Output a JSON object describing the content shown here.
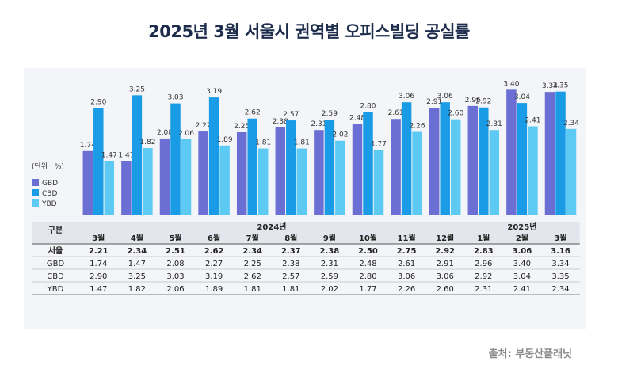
{
  "title": "2025년 3월 서울시 권역별 오피스빌딩 공실률",
  "source": "출처: 부동산플래닛",
  "chart_data": {
    "type": "bar",
    "unit_label": "(단위 : %)",
    "year_groups": [
      {
        "label": "2024년",
        "from": 0,
        "to": 9
      },
      {
        "label": "2025년",
        "from": 10,
        "to": 12
      }
    ],
    "categories": [
      "3월",
      "4월",
      "5월",
      "6월",
      "7월",
      "8월",
      "9월",
      "10월",
      "11월",
      "12월",
      "1월",
      "2월",
      "3월"
    ],
    "series": [
      {
        "name": "GBD",
        "color": "#6b6fd4",
        "values": [
          1.74,
          1.47,
          2.08,
          2.27,
          2.25,
          2.38,
          2.31,
          2.48,
          2.61,
          2.91,
          2.96,
          3.4,
          3.34
        ]
      },
      {
        "name": "CBD",
        "color": "#1a9be6",
        "values": [
          2.9,
          3.25,
          3.03,
          3.19,
          2.62,
          2.57,
          2.59,
          2.8,
          3.06,
          3.06,
          2.92,
          3.04,
          3.35
        ]
      },
      {
        "name": "YBD",
        "color": "#5ccaf2",
        "values": [
          1.47,
          1.82,
          2.06,
          1.89,
          1.81,
          1.81,
          2.02,
          1.77,
          2.26,
          2.6,
          2.31,
          2.41,
          2.34
        ]
      }
    ],
    "ylim": [
      0,
      3.6
    ],
    "table": {
      "header_label": "구분",
      "rows": [
        {
          "name": "서울",
          "bold": true,
          "values": [
            "2.21",
            "2.34",
            "2.51",
            "2.62",
            "2.34",
            "2.37",
            "2.38",
            "2.50",
            "2.75",
            "2.92",
            "2.83",
            "3.06",
            "3.16"
          ]
        },
        {
          "name": "GBD",
          "bold": false,
          "values": [
            "1.74",
            "1.47",
            "2.08",
            "2.27",
            "2.25",
            "2.38",
            "2.31",
            "2.48",
            "2.61",
            "2.91",
            "2.96",
            "3.40",
            "3.34"
          ]
        },
        {
          "name": "CBD",
          "bold": false,
          "values": [
            "2.90",
            "3.25",
            "3.03",
            "3.19",
            "2.62",
            "2.57",
            "2.59",
            "2.80",
            "3.06",
            "3.06",
            "2.92",
            "3.04",
            "3.35"
          ]
        },
        {
          "name": "YBD",
          "bold": false,
          "values": [
            "1.47",
            "1.82",
            "2.06",
            "1.89",
            "1.81",
            "1.81",
            "2.02",
            "1.77",
            "2.26",
            "2.60",
            "2.31",
            "2.41",
            "2.34"
          ]
        }
      ]
    }
  }
}
